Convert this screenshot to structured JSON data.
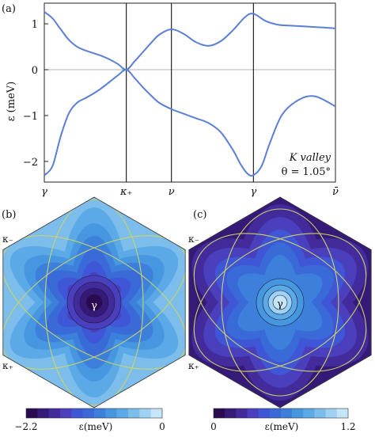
{
  "chart_data": [
    {
      "type": "line",
      "panel_label": "(a)",
      "ylabel": "ε (meV)",
      "xlabel": "",
      "ylim": [
        -2.45,
        1.45
      ],
      "yticks": [
        "1",
        "0",
        "−1",
        "−2"
      ],
      "ytick_values": [
        1,
        0,
        -1,
        -2
      ],
      "xticks": [
        "γ",
        "κ₊",
        "ν",
        "γ",
        "ν̄"
      ],
      "xtick_values": [
        0,
        1,
        1.55,
        2.55,
        3.55
      ],
      "vlines": [
        1,
        1.55,
        2.55
      ],
      "hline": 0,
      "annotation_lines": [
        "K valley",
        "θ = 1.05°"
      ],
      "series_color": "#5b7fd6",
      "series": [
        {
          "x": [
            0,
            0.1,
            0.2,
            0.3,
            0.4,
            0.5,
            0.6,
            0.7,
            0.8,
            0.9,
            1.0,
            1.1,
            1.2,
            1.3,
            1.4,
            1.55,
            1.7,
            1.85,
            2.0,
            2.15,
            2.3,
            2.45,
            2.55,
            2.7,
            2.85,
            3.0,
            3.2,
            3.4,
            3.55
          ],
          "y": [
            1.26,
            1.12,
            0.88,
            0.65,
            0.5,
            0.42,
            0.36,
            0.3,
            0.22,
            0.12,
            0.0,
            0.18,
            0.38,
            0.58,
            0.76,
            0.88,
            0.78,
            0.6,
            0.52,
            0.62,
            0.86,
            1.15,
            1.22,
            1.06,
            0.98,
            0.96,
            0.94,
            0.92,
            0.9
          ]
        },
        {
          "x": [
            0,
            0.1,
            0.2,
            0.3,
            0.4,
            0.5,
            0.6,
            0.7,
            0.8,
            0.9,
            1.0,
            1.1,
            1.2,
            1.3,
            1.4,
            1.55,
            1.7,
            1.85,
            2.0,
            2.15,
            2.3,
            2.4,
            2.48,
            2.55,
            2.65,
            2.75,
            2.9,
            3.1,
            3.3,
            3.55
          ],
          "y": [
            -2.3,
            -2.1,
            -1.45,
            -0.95,
            -0.72,
            -0.62,
            -0.52,
            -0.4,
            -0.26,
            -0.12,
            0.0,
            -0.18,
            -0.38,
            -0.56,
            -0.72,
            -0.86,
            -0.96,
            -1.06,
            -1.16,
            -1.36,
            -1.75,
            -2.08,
            -2.27,
            -2.3,
            -2.1,
            -1.6,
            -0.98,
            -0.66,
            -0.58,
            -0.8
          ]
        }
      ]
    },
    {
      "type": "heatmap",
      "panel_label": "(b)",
      "point_labels": [
        "κ₋",
        "κ₊"
      ],
      "center_label": "γ",
      "colorbar": {
        "min_label": "−2.2",
        "max_label": "0",
        "label": "ε(meV)",
        "range": [
          -2.2,
          0
        ]
      }
    },
    {
      "type": "heatmap",
      "panel_label": "(c)",
      "point_labels": [
        "κ₋",
        "κ₊"
      ],
      "center_label": "γ",
      "colorbar": {
        "min_label": "0",
        "max_label": "1.2",
        "label": "ε(meV)",
        "range": [
          0,
          1.2
        ]
      }
    }
  ],
  "palette": [
    "#2a0b52",
    "#361a78",
    "#432b9c",
    "#4a3fbc",
    "#3f56d6",
    "#3a6ad8",
    "#3d80dc",
    "#4796e0",
    "#5ba9e6",
    "#7cbdec",
    "#9fd1f2",
    "#c4e6f8"
  ]
}
